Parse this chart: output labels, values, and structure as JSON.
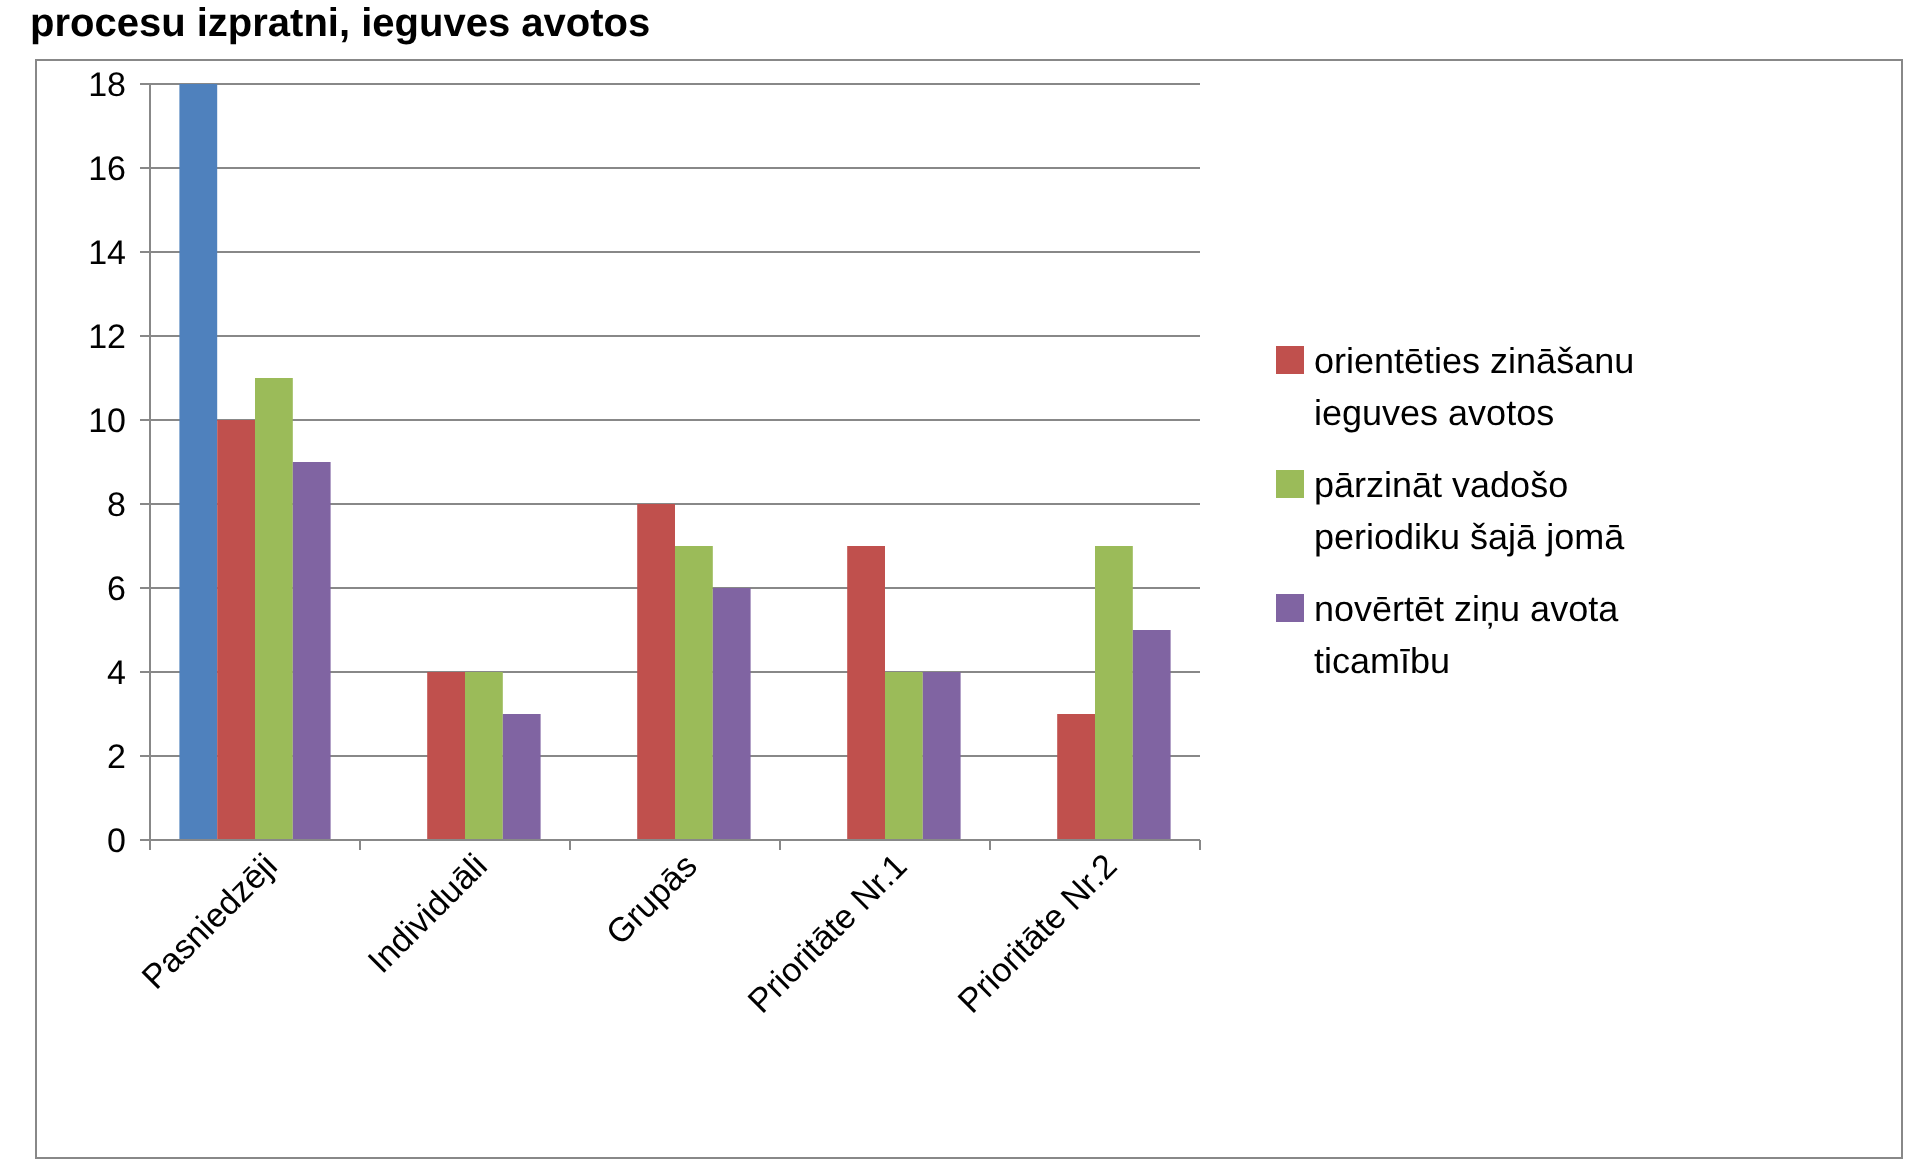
{
  "chart_data": {
    "type": "bar",
    "title": "procesu izpratni, ieguves avotos",
    "categories": [
      "Pasniedzēji",
      "Individuāli",
      "Grupās",
      "Prioritāte Nr.1",
      "Prioritāte Nr.2"
    ],
    "series": [
      {
        "color": "#4f81bd",
        "values": [
          18,
          null,
          null,
          null,
          null
        ]
      },
      {
        "name": "orientēties zināšanu ieguves avotos",
        "color": "#c0504d",
        "values": [
          10,
          4,
          8,
          7,
          3
        ]
      },
      {
        "name": "pārzināt vadošo periodiku šajā jomā",
        "color": "#9bbb59",
        "values": [
          11,
          4,
          7,
          4,
          7
        ]
      },
      {
        "name": "novērtēt ziņu avota ticamību",
        "color": "#8064a2",
        "values": [
          9,
          3,
          6,
          4,
          5
        ]
      }
    ],
    "ylim": [
      0,
      18
    ],
    "yticks": [
      0,
      2,
      4,
      6,
      8,
      10,
      12,
      14,
      16,
      18
    ],
    "grid": "y",
    "legend": "right"
  }
}
